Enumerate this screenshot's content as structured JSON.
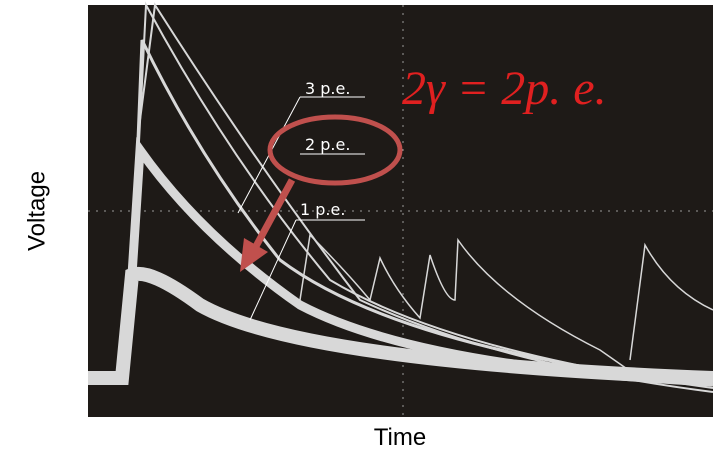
{
  "y_label": "Voltage",
  "x_label": "Time",
  "labels": [
    "3 p.e.",
    "2 p.e.",
    "1 p.e."
  ],
  "equation": "2γ = 2p. e."
}
